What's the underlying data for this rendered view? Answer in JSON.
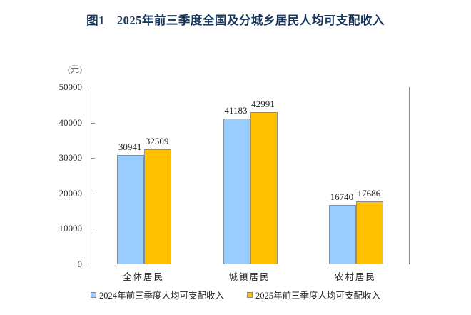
{
  "chart_data": {
    "type": "bar",
    "title": "图1　2025年前三季度全国及分城乡居民人均可支配收入",
    "unit_label": "(元)",
    "categories": [
      "全体居民",
      "城镇居民",
      "农村居民"
    ],
    "series": [
      {
        "name": "2024年前三季度人均可支配收入",
        "color": "#99CCFF",
        "border_color": "#8C8C8C",
        "values": [
          30941,
          41183,
          16740
        ]
      },
      {
        "name": "2025年前三季度人均可支配收入",
        "color": "#FFC000",
        "border_color": "#8C8C8C",
        "values": [
          32509,
          42991,
          17686
        ]
      }
    ],
    "ylim": [
      0,
      50000
    ],
    "yticks": [
      0,
      10000,
      20000,
      30000,
      40000,
      50000
    ],
    "grid": false,
    "show_value_labels": true,
    "legend_position": "bottom",
    "colors": {
      "title": "#17375E",
      "axis_line": "#8C8C8C",
      "text": "#262626",
      "unit_label": "#595959"
    }
  }
}
